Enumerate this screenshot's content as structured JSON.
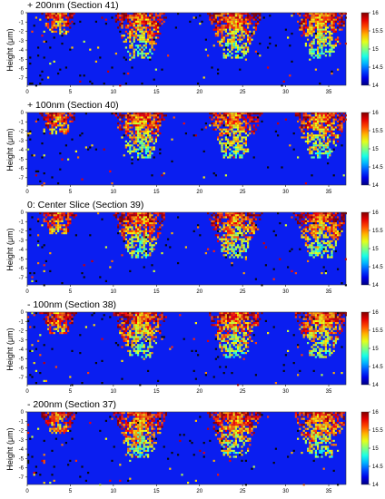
{
  "figure": {
    "ylabel": "Height (μm)",
    "panels": [
      {
        "title": "+ 200nm (Section 41)"
      },
      {
        "title": "+ 100nm (Section 40)"
      },
      {
        "title": "0: Center Slice (Section 39)"
      },
      {
        "title": "- 100nm (Section 38)"
      },
      {
        "title": "- 200nm (Section 37)"
      }
    ]
  },
  "chart_data": {
    "type": "heatmap",
    "panel_count": 5,
    "x_ticks": [
      "0",
      "5",
      "10",
      "15",
      "20",
      "25",
      "30",
      "35"
    ],
    "y_ticks": [
      "0",
      "-1",
      "-2",
      "-3",
      "-4",
      "-5",
      "-6",
      "-7"
    ],
    "xlim": [
      0,
      37
    ],
    "ylim": [
      -7.8,
      0
    ],
    "colorbar": {
      "ticks": [
        "16",
        "15.5",
        "15",
        "14.5",
        "14"
      ],
      "range": [
        14,
        16
      ],
      "colormap": "jet"
    },
    "clusters_x_centers": [
      3.5,
      13,
      24,
      34
    ],
    "background_color": "#0a1ef0"
  }
}
